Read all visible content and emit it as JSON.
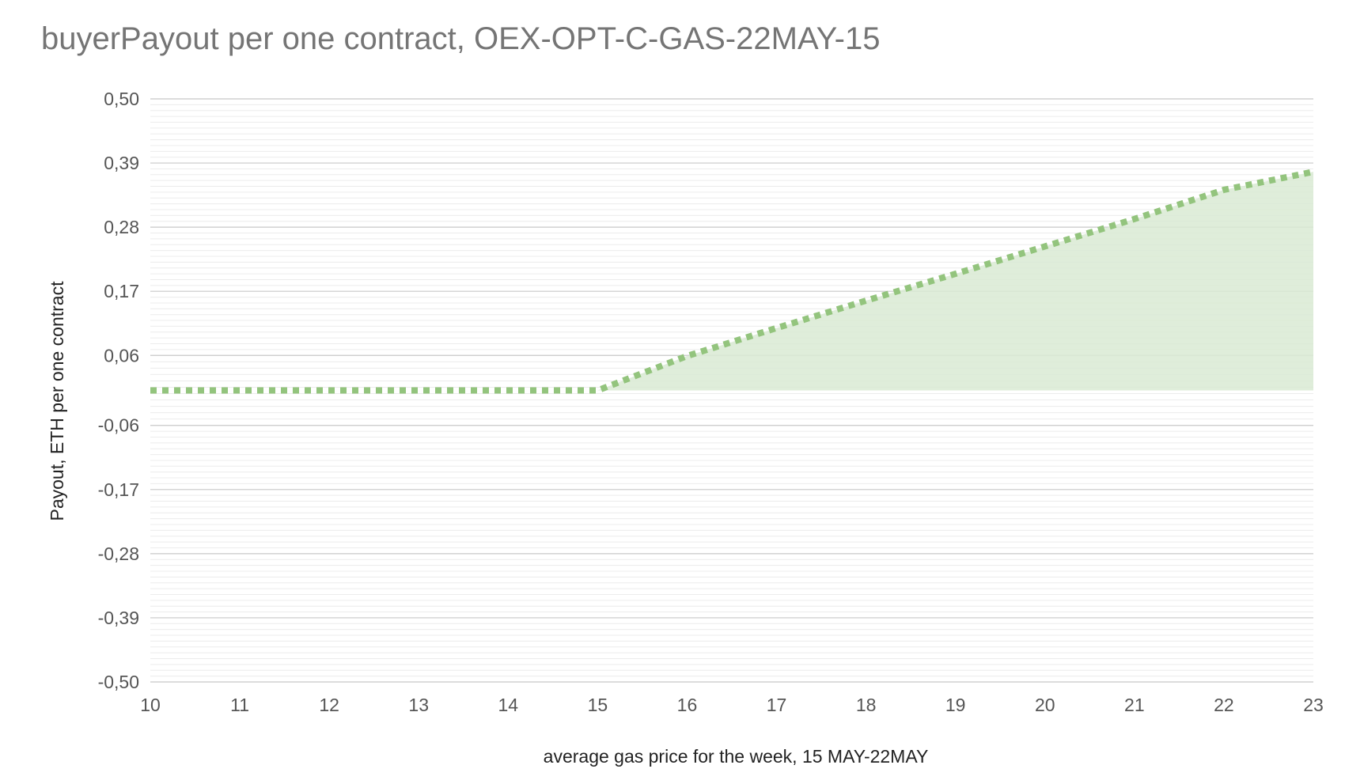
{
  "chart_data": {
    "type": "area",
    "title": "buyerPayout per one contract, OEX-OPT-C-GAS-22MAY-15",
    "xlabel": "average gas price for the week, 15 MAY-22MAY",
    "ylabel": "Payout, ETH per one contract",
    "xlim": [
      10,
      23
    ],
    "ylim": [
      -0.5,
      0.5
    ],
    "x_ticks": [
      "10",
      "11",
      "12",
      "13",
      "14",
      "15",
      "16",
      "17",
      "18",
      "19",
      "20",
      "21",
      "22",
      "23"
    ],
    "y_ticks": [
      {
        "value": 0.5,
        "label": "0,50"
      },
      {
        "value": 0.39,
        "label": "0,39"
      },
      {
        "value": 0.28,
        "label": "0,28"
      },
      {
        "value": 0.17,
        "label": "0,17"
      },
      {
        "value": 0.06,
        "label": "0,06"
      },
      {
        "value": -0.06,
        "label": "-0,06"
      },
      {
        "value": -0.17,
        "label": "-0,17"
      },
      {
        "value": -0.28,
        "label": "-0,28"
      },
      {
        "value": -0.39,
        "label": "-0,39"
      },
      {
        "value": -0.5,
        "label": "-0,50"
      }
    ],
    "grid": true,
    "series": [
      {
        "x": [
          10,
          11,
          12,
          13,
          14,
          15,
          16,
          17,
          18,
          19,
          20,
          21,
          22,
          23
        ],
        "values": [
          0,
          0,
          0,
          0,
          0,
          0,
          0.059,
          0.107,
          0.154,
          0.2,
          0.247,
          0.294,
          0.344,
          0.375
        ]
      }
    ],
    "colors": {
      "line": "#93c47d",
      "fill": "#d9ead3",
      "major_grid": "#c8c8c8",
      "minor_grid": "#ececec"
    }
  }
}
